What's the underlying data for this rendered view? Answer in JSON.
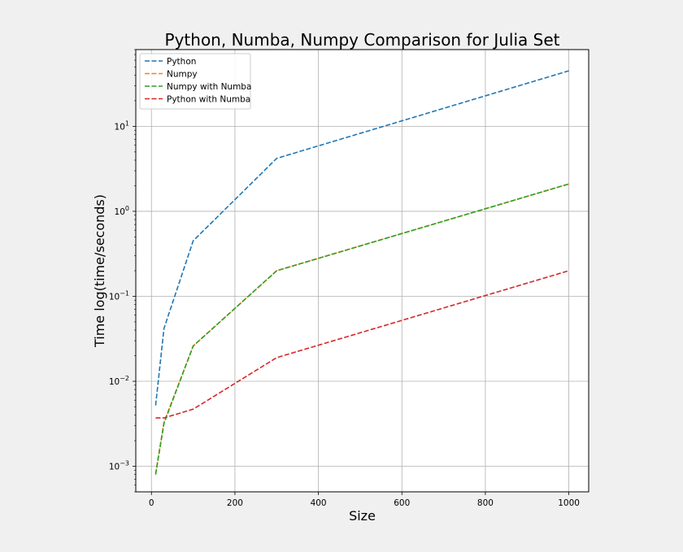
{
  "chart_data": {
    "type": "line",
    "title": "Python, Numba, Numpy Comparison for Julia Set",
    "xlabel": "Size",
    "ylabel": "Time log(time/seconds)",
    "xscale": "linear",
    "yscale": "log",
    "xlim": [
      -37.5,
      1047.5
    ],
    "ylim": [
      0.0005,
      80
    ],
    "xticks": [
      0,
      200,
      400,
      600,
      800,
      1000
    ],
    "xtick_labels": [
      "0",
      "200",
      "400",
      "600",
      "800",
      "1000"
    ],
    "yticks": [
      0.001,
      0.01,
      0.1,
      1,
      10
    ],
    "ytick_labels": [
      {
        "base": "10",
        "exp": "−3"
      },
      {
        "base": "10",
        "exp": "−2"
      },
      {
        "base": "10",
        "exp": "−1"
      },
      {
        "base": "10",
        "exp": "0"
      },
      {
        "base": "10",
        "exp": "1"
      }
    ],
    "grid": true,
    "legend_position": "top-left",
    "line_style": "dashed",
    "x": [
      10,
      30,
      100,
      300,
      1000
    ],
    "series": [
      {
        "name": "Python",
        "color": "#1f77b4",
        "values": [
          0.0052,
          0.042,
          0.45,
          4.2,
          45
        ]
      },
      {
        "name": "Numpy",
        "color": "#ff7f0e",
        "values": [
          0.00082,
          0.0033,
          0.026,
          0.2,
          2.1
        ]
      },
      {
        "name": "Numpy with Numba",
        "color": "#2ca02c",
        "values": [
          0.0008,
          0.0032,
          0.026,
          0.2,
          2.1
        ]
      },
      {
        "name": "Python with Numba",
        "color": "#d62728",
        "values": [
          0.0037,
          0.0037,
          0.0047,
          0.019,
          0.2
        ]
      }
    ]
  }
}
